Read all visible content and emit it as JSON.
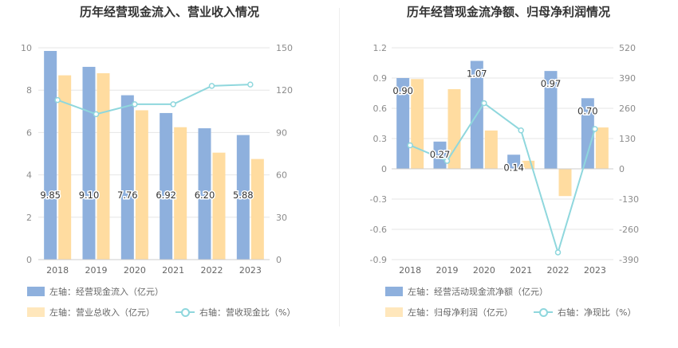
{
  "colors": {
    "bar_primary": "#8eb0dd",
    "bar_secondary": "#ffdca0",
    "line": "#8fd7dd",
    "grid": "#e6e6e6",
    "axis_text": "#8c8c8c",
    "title": "#333333"
  },
  "chart_data": [
    {
      "type": "bar",
      "title": "历年经营现金流入、营业收入情况",
      "categories": [
        "2018",
        "2019",
        "2020",
        "2021",
        "2022",
        "2023"
      ],
      "left_axis": {
        "min": 0,
        "max": 10,
        "ticks": [
          "0",
          "2",
          "4",
          "6",
          "8",
          "10"
        ]
      },
      "right_axis": {
        "min": 0,
        "max": 150,
        "ticks": [
          "0",
          "30",
          "60",
          "90",
          "120",
          "150"
        ]
      },
      "series": [
        {
          "name": "左轴：经营现金流入（亿元）",
          "axis": "left",
          "type": "bar",
          "color_key": "bar_primary",
          "values": [
            9.85,
            9.1,
            7.76,
            6.92,
            6.2,
            5.88
          ],
          "labels": [
            "9.85",
            "9.10",
            "7.76",
            "6.92",
            "6.20",
            "5.88"
          ]
        },
        {
          "name": "左轴：营业总收入（亿元）",
          "axis": "left",
          "type": "bar",
          "color_key": "bar_secondary",
          "values": [
            8.7,
            8.8,
            7.05,
            6.25,
            5.05,
            4.75
          ]
        },
        {
          "name": "右轴：营收现金比（%）",
          "axis": "right",
          "type": "line",
          "color_key": "line",
          "values": [
            113,
            103,
            110,
            110,
            123,
            124
          ]
        }
      ]
    },
    {
      "type": "bar",
      "title": "历年经营现金流净额、归母净利润情况",
      "categories": [
        "2018",
        "2019",
        "2020",
        "2021",
        "2022",
        "2023"
      ],
      "left_axis": {
        "min": -0.9,
        "max": 1.2,
        "ticks": [
          "-0.9",
          "-0.6",
          "-0.3",
          "0",
          "0.3",
          "0.6",
          "0.9",
          "1.2"
        ]
      },
      "right_axis": {
        "min": -390,
        "max": 520,
        "ticks": [
          "-390",
          "-260",
          "-130",
          "0",
          "130",
          "260",
          "390",
          "520"
        ]
      },
      "series": [
        {
          "name": "左轴：经营活动现金流净额（亿元）",
          "axis": "left",
          "type": "bar",
          "color_key": "bar_primary",
          "values": [
            0.9,
            0.27,
            1.07,
            0.14,
            0.97,
            0.7
          ],
          "labels": [
            "0.90",
            "0.27",
            "1.07",
            "0.14",
            "0.97",
            "0.70"
          ]
        },
        {
          "name": "左轴：归母净利润（亿元）",
          "axis": "left",
          "type": "bar",
          "color_key": "bar_secondary",
          "values": [
            0.89,
            0.79,
            0.38,
            0.08,
            -0.27,
            0.41
          ]
        },
        {
          "name": "右轴：净现比（%）",
          "axis": "right",
          "type": "line",
          "color_key": "line",
          "values": [
            101,
            34,
            282,
            165,
            -359,
            171
          ]
        }
      ]
    }
  ]
}
